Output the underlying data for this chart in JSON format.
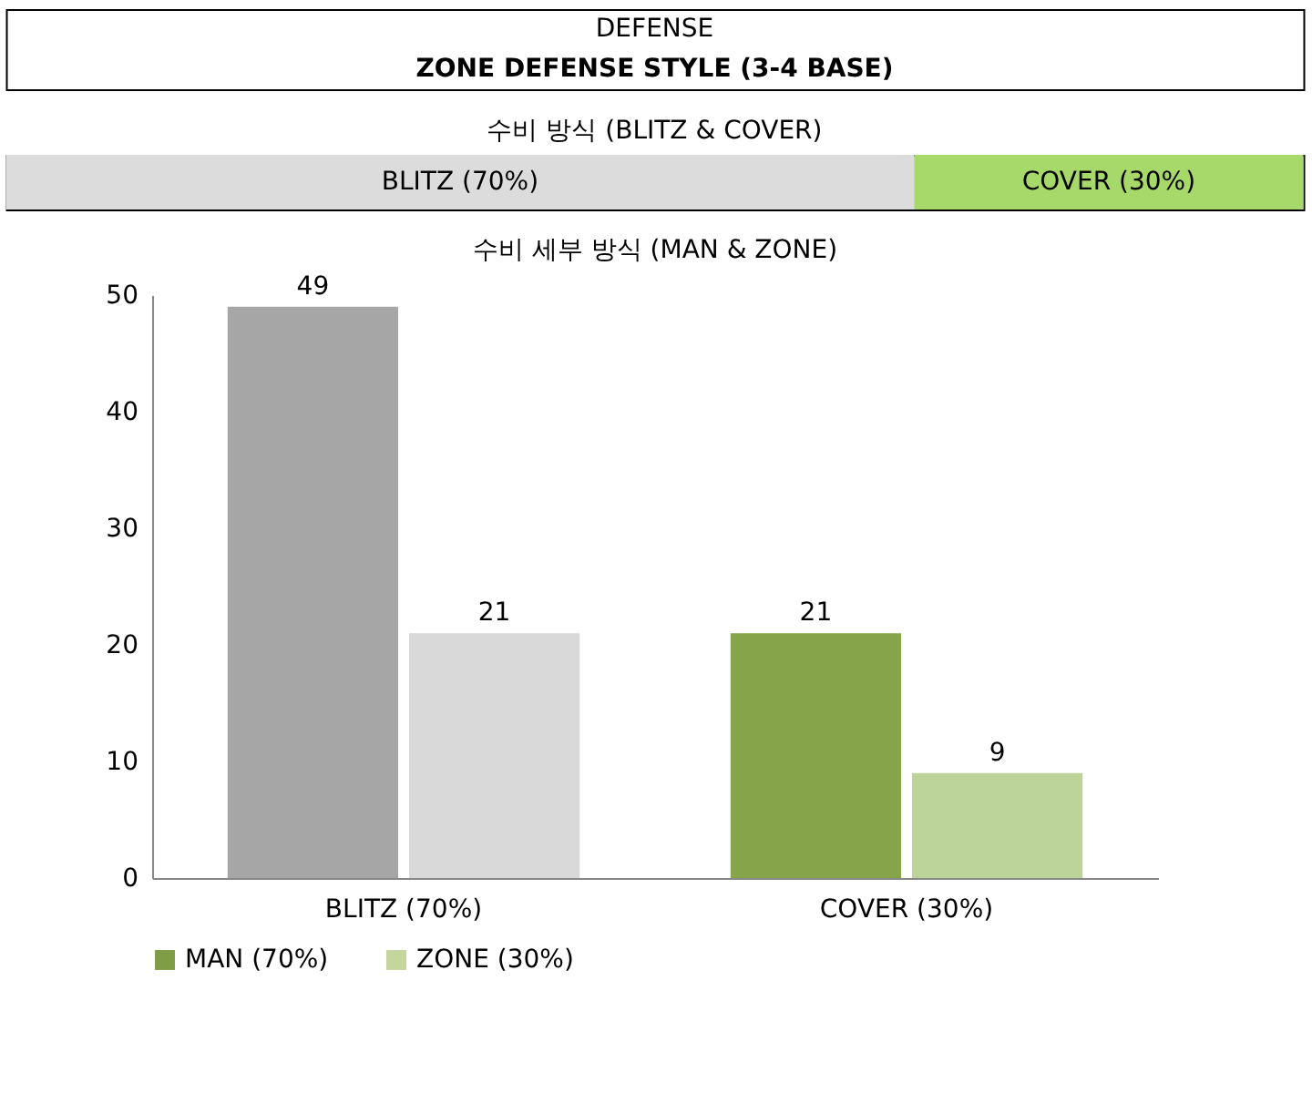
{
  "chart_data": [
    {
      "type": "other",
      "title": "DEFENSE",
      "subtitle": "ZONE DEFENSE STYLE (3-4 BASE)"
    },
    {
      "type": "bar",
      "orientation": "horizontal",
      "stacked": true,
      "title": "수비 방식 (BLITZ & COVER)",
      "categories": [
        null
      ],
      "series": [
        {
          "color": "#dcdcdc",
          "values": [
            70
          ],
          "value_labels": [
            "BLITZ (70%)"
          ]
        },
        {
          "color": "#a6d96a",
          "values": [
            30
          ],
          "value_labels": [
            "COVER (30%)"
          ]
        }
      ]
    },
    {
      "type": "bar",
      "title": "수비 세부 방식 (MAN & ZONE)",
      "categories": [
        "BLITZ (70%)",
        "COVER (30%)"
      ],
      "series": [
        {
          "name": "MAN (70%)",
          "color": "#7f9d45",
          "colors": [
            "#a6a6a6",
            "#86a54a"
          ],
          "values": [
            49,
            21
          ]
        },
        {
          "name": "ZONE (30%)",
          "color": "#c3d69b",
          "colors": [
            "#d9d9d9",
            "#bcd49a"
          ],
          "values": [
            21,
            9
          ]
        }
      ],
      "ylim": [
        0,
        50
      ],
      "yticks": [
        0,
        10,
        20,
        30,
        40,
        50
      ],
      "data_labels": true,
      "legend": "bottom"
    }
  ]
}
